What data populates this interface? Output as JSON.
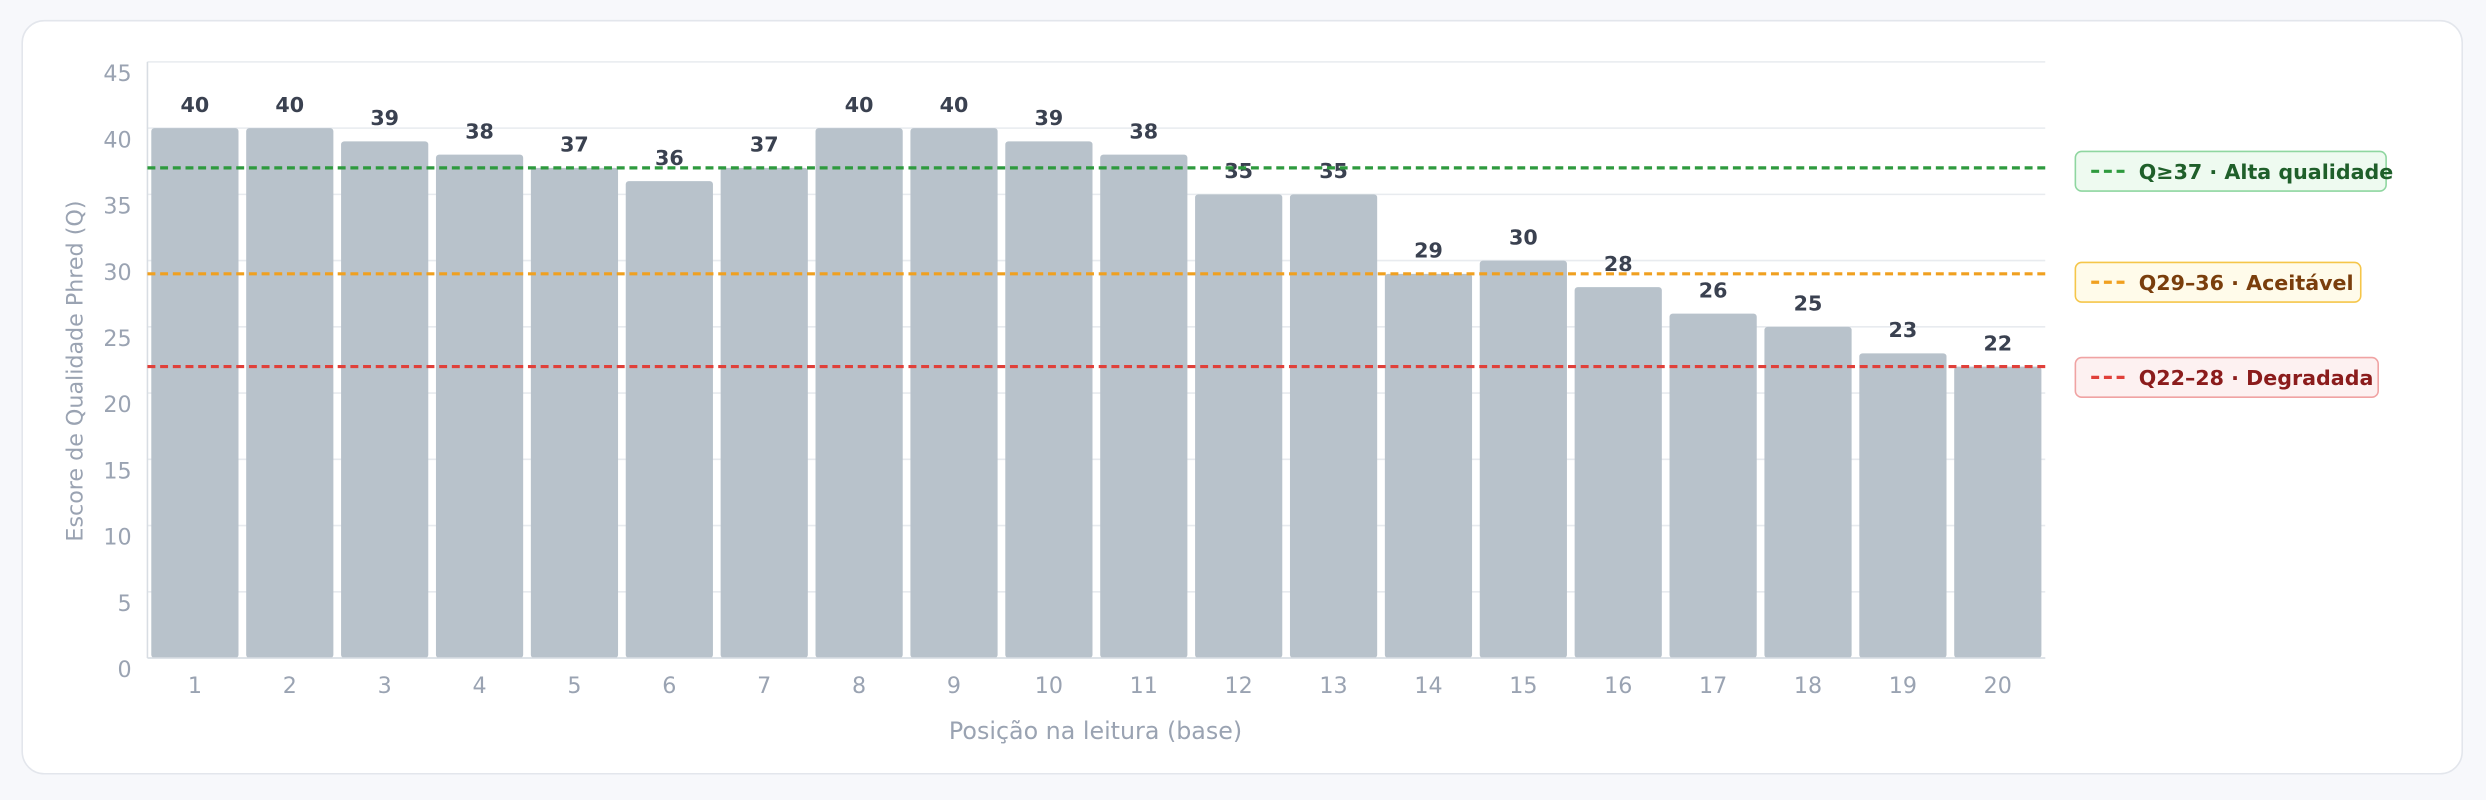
{
  "chart_data": {
    "type": "bar",
    "categories": [
      "1",
      "2",
      "3",
      "4",
      "5",
      "6",
      "7",
      "8",
      "9",
      "10",
      "11",
      "12",
      "13",
      "14",
      "15",
      "16",
      "17",
      "18",
      "19",
      "20"
    ],
    "values": [
      40,
      40,
      39,
      38,
      37,
      36,
      37,
      40,
      40,
      39,
      38,
      35,
      35,
      29,
      30,
      28,
      26,
      25,
      23,
      22
    ],
    "color": "#b8c2cb",
    "xlabel": "Posição na leitura (base)",
    "ylabel": "Escore de Qualidade Phred (Q)",
    "ylim": [
      0,
      45
    ],
    "yticks": [
      0,
      5,
      10,
      15,
      20,
      25,
      30,
      35,
      40,
      45
    ],
    "grid": true,
    "thresholds": [
      {
        "value": 37,
        "label": "Q≥37 · Alta qualidade",
        "color": "#2e9a3e"
      },
      {
        "value": 29,
        "label": "Q29–36 · Aceitável",
        "color": "#f0a020"
      },
      {
        "value": 22,
        "label": "Q22–28 · Degradada",
        "color": "#e0403a"
      }
    ]
  }
}
